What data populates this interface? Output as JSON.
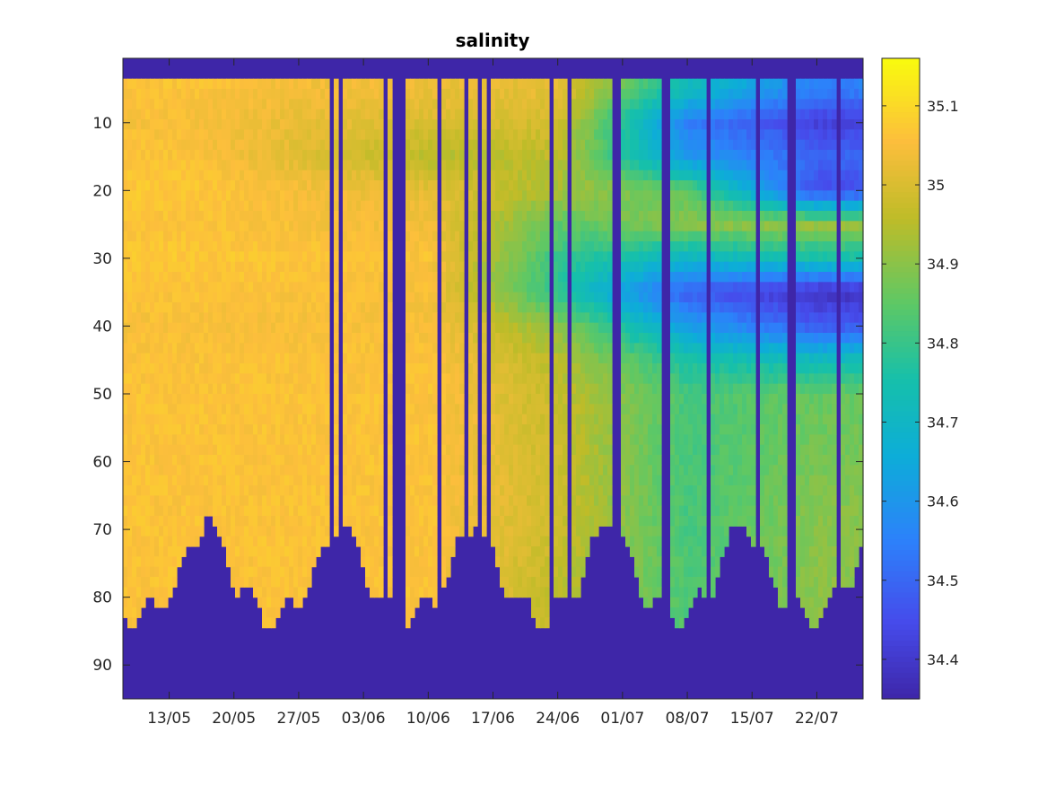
{
  "chart_data": {
    "type": "heatmap",
    "title": "salinity",
    "xlabel": "",
    "ylabel": "",
    "x_tick_labels": [
      "13/05",
      "20/05",
      "27/05",
      "03/06",
      "10/06",
      "17/06",
      "24/06",
      "01/07",
      "08/07",
      "15/07",
      "22/07"
    ],
    "x_tick_dates": [
      "2024-05-13",
      "2024-05-20",
      "2024-05-27",
      "2024-06-03",
      "2024-06-10",
      "2024-06-17",
      "2024-06-24",
      "2024-07-01",
      "2024-07-08",
      "2024-07-15",
      "2024-07-22"
    ],
    "x_range": [
      "2024-05-08",
      "2024-07-27"
    ],
    "y_ticks": [
      10,
      20,
      30,
      40,
      50,
      60,
      70,
      80,
      90
    ],
    "y_range": [
      0.5,
      95
    ],
    "y_reversed": true,
    "colorbar": {
      "colormap": "parula",
      "range": [
        34.35,
        35.16
      ],
      "ticks": [
        34.4,
        34.5,
        34.6,
        34.7,
        34.8,
        34.9,
        35,
        35.1
      ],
      "tick_labels": [
        "34.4",
        "34.5",
        "34.6",
        "34.7",
        "34.8",
        "34.9",
        "35",
        "35.1"
      ]
    },
    "depth_profile_samples": {
      "depth": [
        5,
        10,
        15,
        20,
        25,
        30,
        35,
        40,
        45,
        50,
        60,
        70,
        78
      ],
      "2024-05-15": [
        35.06,
        35.05,
        35.06,
        35.07,
        35.06,
        35.07,
        35.06,
        35.05,
        35.06,
        35.06,
        35.06,
        35.06,
        35.06
      ],
      "2024-06-10": [
        35.03,
        35.0,
        34.95,
        35.02,
        35.04,
        35.06,
        35.05,
        35.05,
        35.06,
        35.06,
        35.06,
        35.06,
        35.06
      ],
      "2024-06-24": [
        35.02,
        34.99,
        34.96,
        34.93,
        34.85,
        34.8,
        34.78,
        34.9,
        34.95,
        34.97,
        34.98,
        34.98,
        34.96
      ],
      "2024-07-08": [
        34.72,
        34.55,
        34.6,
        34.85,
        34.9,
        34.7,
        34.48,
        34.62,
        34.76,
        34.82,
        34.82,
        34.82,
        34.83
      ],
      "2024-07-22": [
        34.55,
        34.42,
        34.5,
        34.45,
        34.92,
        34.75,
        34.38,
        34.48,
        34.72,
        34.86,
        34.88,
        34.9,
        34.9
      ]
    },
    "missing_value_color": "#3e26a8"
  }
}
